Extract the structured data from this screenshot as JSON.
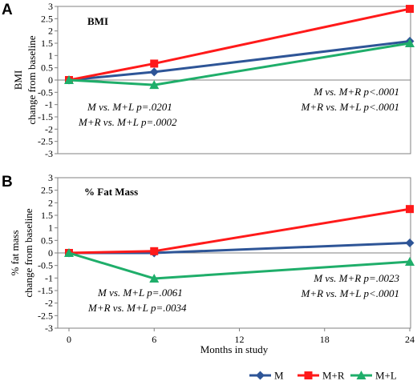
{
  "chart_data": [
    {
      "panel": "A",
      "type": "line",
      "title": "BMI",
      "ylabel_line1": "BMI",
      "ylabel_line2": "change from baseline",
      "ylim": [
        -3,
        3
      ],
      "yticks": [
        3,
        2.5,
        2,
        1.5,
        1,
        0.5,
        0,
        -0.5,
        -1,
        -1.5,
        -2,
        -2.5,
        -3
      ],
      "ytick_labels": [
        "3",
        "2.5",
        "2",
        "1.5",
        "1",
        "0.5",
        "0",
        "-0.5",
        "-1",
        "-1.5",
        "-2",
        "-2.5",
        "-3"
      ],
      "x": [
        0,
        6,
        24
      ],
      "series": [
        {
          "name": "M",
          "color": "#2e5597",
          "marker": "diamond",
          "values": [
            0,
            0.33,
            1.58
          ]
        },
        {
          "name": "M+R",
          "color": "#ff1a1a",
          "marker": "square",
          "values": [
            0,
            0.67,
            2.9
          ]
        },
        {
          "name": "M+L",
          "color": "#1fae6a",
          "marker": "triangle",
          "values": [
            0,
            -0.2,
            1.5
          ]
        }
      ],
      "annotations_left": [
        "M vs. M+L p=.0201",
        "M+R vs. M+L p=.0002"
      ],
      "annotations_right": [
        "M vs. M+R p<.0001",
        "M+R vs. M+L p<.0001"
      ]
    },
    {
      "panel": "B",
      "type": "line",
      "title": "% Fat Mass",
      "ylabel_line1": "% fat mass",
      "ylabel_line2": "change from baseline",
      "ylim": [
        -3,
        3
      ],
      "yticks": [
        3,
        2.5,
        2,
        1.5,
        1,
        0.5,
        0,
        -0.5,
        -1,
        -1.5,
        -2,
        -2.5,
        -3
      ],
      "ytick_labels": [
        "3",
        "2.5",
        "2",
        "1.5",
        "1",
        "0.5",
        "0",
        "-0.5",
        "-1",
        "-1.5",
        "-2",
        "-2.5",
        "-3"
      ],
      "x": [
        0,
        6,
        24
      ],
      "xlim": [
        0,
        24
      ],
      "xticks": [
        0,
        6,
        12,
        18,
        24
      ],
      "xtick_labels": [
        "0",
        "6",
        "12",
        "18",
        "24"
      ],
      "xlabel": "Months in study",
      "series": [
        {
          "name": "M",
          "color": "#2e5597",
          "marker": "diamond",
          "values": [
            0,
            0,
            0.4
          ]
        },
        {
          "name": "M+R",
          "color": "#ff1a1a",
          "marker": "square",
          "values": [
            0,
            0.07,
            1.75
          ]
        },
        {
          "name": "M+L",
          "color": "#1fae6a",
          "marker": "triangle",
          "values": [
            0,
            -1.02,
            -0.35
          ]
        }
      ],
      "annotations_left": [
        "M vs. M+L p=.0061",
        "M+R vs. M+L p=.0034"
      ],
      "annotations_right": [
        "M vs. M+R p=.0023",
        "M+R vs. M+L p<.0001"
      ]
    }
  ],
  "legend": [
    {
      "name": "M",
      "color": "#2e5597",
      "marker": "diamond"
    },
    {
      "name": "M+R",
      "color": "#ff1a1a",
      "marker": "square"
    },
    {
      "name": "M+L",
      "color": "#1fae6a",
      "marker": "triangle"
    }
  ]
}
